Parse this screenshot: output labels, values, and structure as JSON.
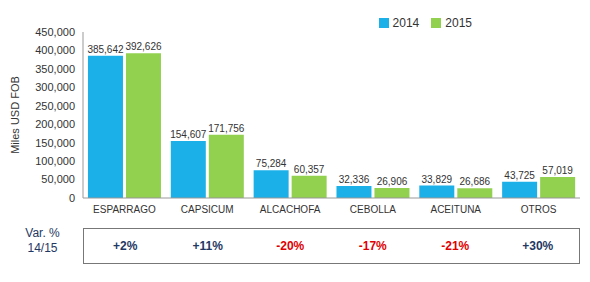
{
  "chart_data": {
    "type": "bar",
    "y_label": "Miles USD FOB",
    "categories": [
      "ESPARRAGO",
      "CAPSICUM",
      "ALCACHOFA",
      "CEBOLLA",
      "ACEITUNA",
      "OTROS"
    ],
    "series": [
      {
        "name": "2014",
        "color": "#1cb0e8",
        "values": [
          385642,
          154607,
          75284,
          32336,
          33829,
          43725
        ],
        "value_labels": [
          "385,642",
          "154,607",
          "75,284",
          "32,336",
          "33,829",
          "43,725"
        ]
      },
      {
        "name": "2015",
        "color": "#92d050",
        "values": [
          392626,
          171756,
          60357,
          26906,
          26686,
          57019
        ],
        "value_labels": [
          "392,626",
          "171,756",
          "60,357",
          "26,906",
          "26,686",
          "57,019"
        ]
      }
    ],
    "ylim": [
      0,
      450000
    ],
    "yticks": [
      {
        "value": 0,
        "label": "0"
      },
      {
        "value": 50000,
        "label": "50,000"
      },
      {
        "value": 100000,
        "label": "100,000"
      },
      {
        "value": 150000,
        "label": "150,000"
      },
      {
        "value": 200000,
        "label": "200,000"
      },
      {
        "value": 250000,
        "label": "250,000"
      },
      {
        "value": 300000,
        "label": "300,000"
      },
      {
        "value": 350000,
        "label": "350,000"
      },
      {
        "value": 400000,
        "label": "400,000"
      },
      {
        "value": 450000,
        "label": "450,000"
      }
    ],
    "grid": false,
    "legend": "upper right",
    "data_labels": true,
    "variation": {
      "label": [
        "Var. %",
        "14/15"
      ],
      "values": [
        2,
        11,
        -20,
        -17,
        -21,
        30
      ],
      "value_labels": [
        "+2%",
        "+11%",
        "-20%",
        "-17%",
        "-21%",
        "+30%"
      ]
    }
  }
}
